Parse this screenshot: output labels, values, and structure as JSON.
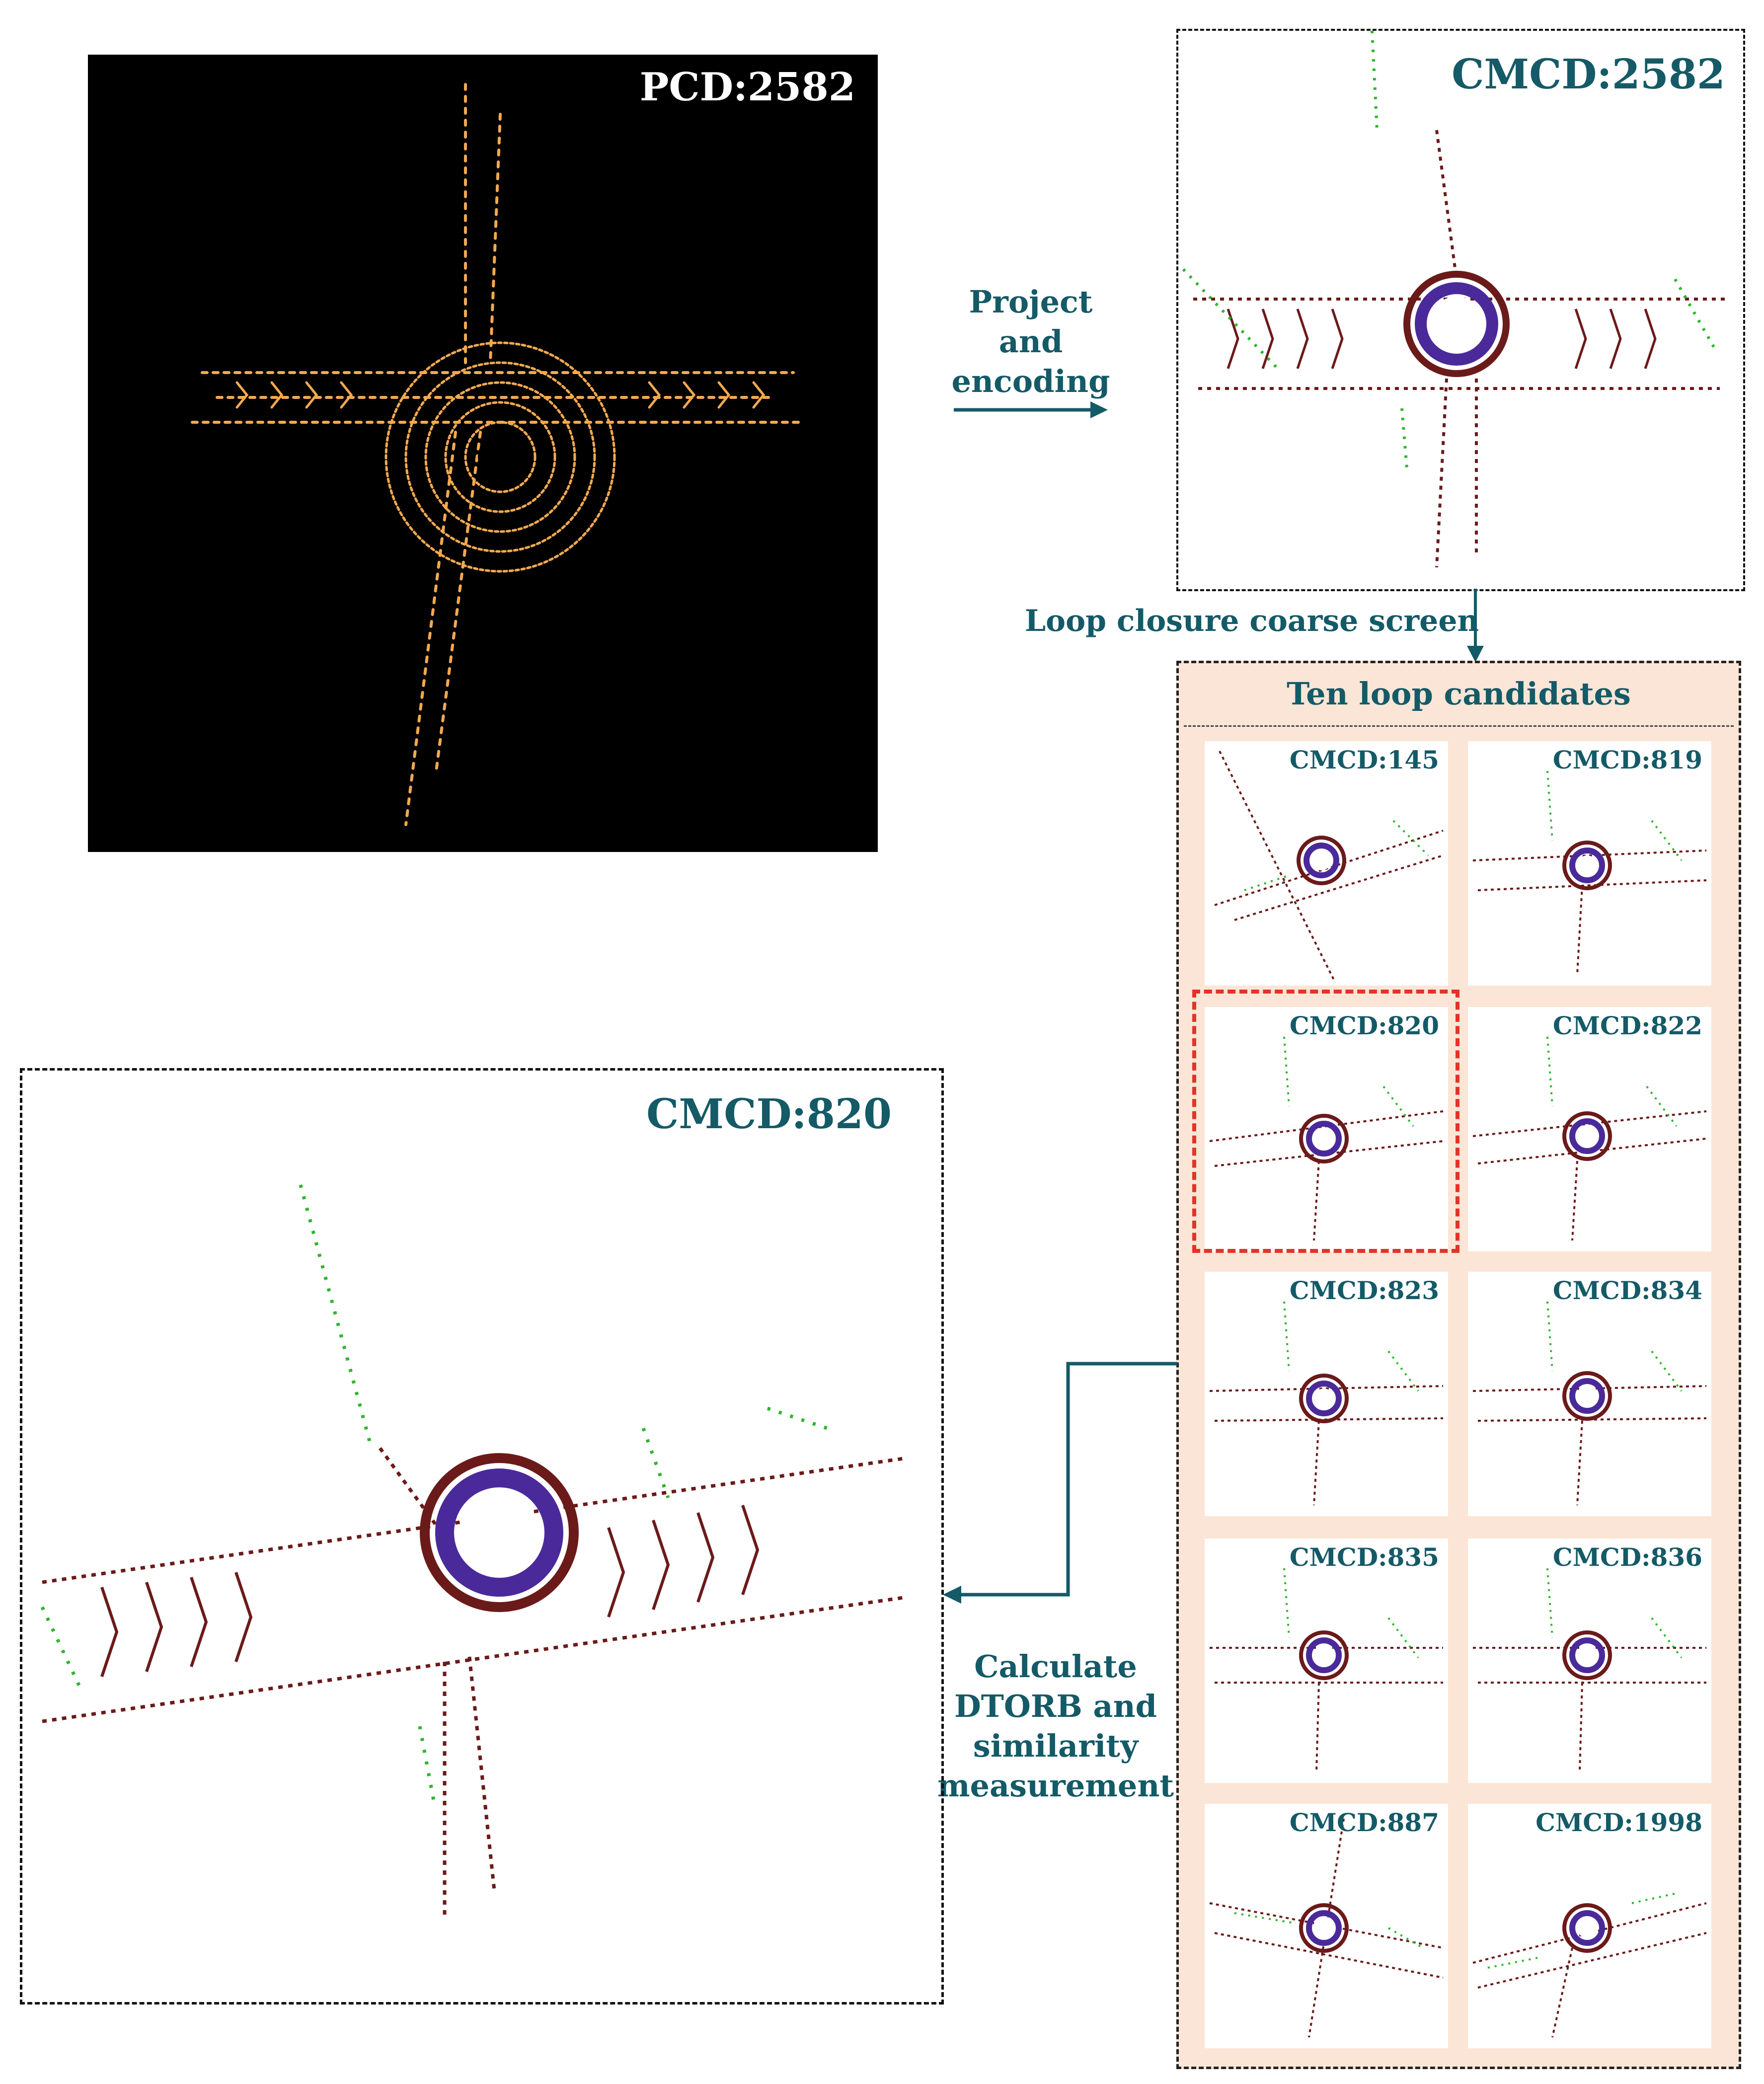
{
  "colors": {
    "accent": "#145a67",
    "point_cloud": "#f3a94f",
    "candidate_panel_bg": "#fbe5d6",
    "selection": "#e53228",
    "cmcd_road": "#6b1a1a",
    "cmcd_ring": "#4a2a9a",
    "cmcd_green": "#2fb52f"
  },
  "pcd": {
    "label": "PCD:2582"
  },
  "cmcd_main": {
    "label": "CMCD:2582"
  },
  "steps": {
    "project": "Project and encoding",
    "coarse_screen": "Loop closure coarse screen",
    "calculate": "Calculate DTORB and similarity measurement"
  },
  "candidates": {
    "title": "Ten loop candidates",
    "items": [
      {
        "label": "CMCD:145"
      },
      {
        "label": "CMCD:819"
      },
      {
        "label": "CMCD:820"
      },
      {
        "label": "CMCD:822"
      },
      {
        "label": "CMCD:823"
      },
      {
        "label": "CMCD:834"
      },
      {
        "label": "CMCD:835"
      },
      {
        "label": "CMCD:836"
      },
      {
        "label": "CMCD:887"
      },
      {
        "label": "CMCD:1998"
      }
    ],
    "selected_index": 2
  },
  "result": {
    "label": "CMCD:820"
  }
}
